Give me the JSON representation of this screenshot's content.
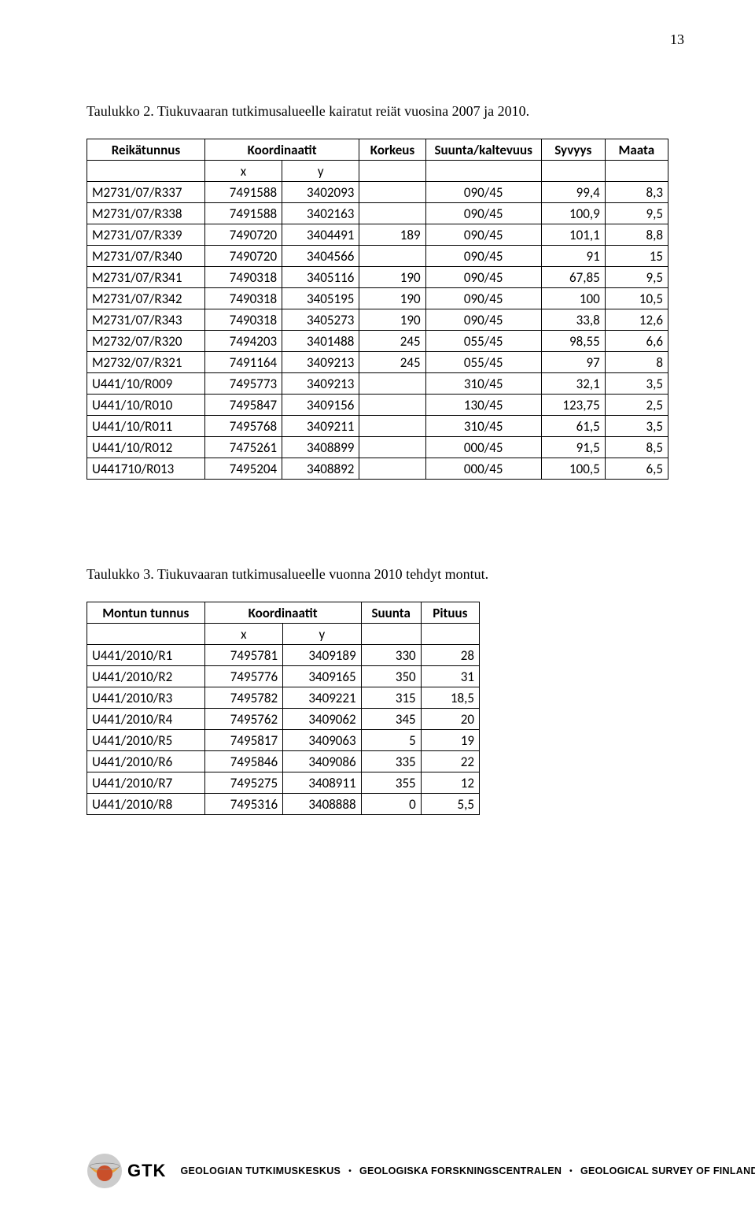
{
  "page_number": "13",
  "caption1": "Taulukko 2.   Tiukuvaaran tutkimusalueelle kairatut reiät vuosina 2007 ja 2010.",
  "caption2": "Taulukko 3.   Tiukuvaaran tutkimusalueelle vuonna 2010 tehdyt montut.",
  "table1": {
    "headers": [
      "Reikätunnus",
      "Koordinaatit",
      "Korkeus",
      "Suunta/kaltevuus",
      "Syvyys",
      "Maata"
    ],
    "subheaders": [
      "x",
      "y"
    ],
    "rows": [
      [
        "M2731/07/R337",
        "7491588",
        "3402093",
        "",
        "090/45",
        "99,4",
        "8,3"
      ],
      [
        "M2731/07/R338",
        "7491588",
        "3402163",
        "",
        "090/45",
        "100,9",
        "9,5"
      ],
      [
        "M2731/07/R339",
        "7490720",
        "3404491",
        "189",
        "090/45",
        "101,1",
        "8,8"
      ],
      [
        "M2731/07/R340",
        "7490720",
        "3404566",
        "",
        "090/45",
        "91",
        "15"
      ],
      [
        "M2731/07/R341",
        "7490318",
        "3405116",
        "190",
        "090/45",
        "67,85",
        "9,5"
      ],
      [
        "M2731/07/R342",
        "7490318",
        "3405195",
        "190",
        "090/45",
        "100",
        "10,5"
      ],
      [
        "M2731/07/R343",
        "7490318",
        "3405273",
        "190",
        "090/45",
        "33,8",
        "12,6"
      ],
      [
        "M2732/07/R320",
        "7494203",
        "3401488",
        "245",
        "055/45",
        "98,55",
        "6,6"
      ],
      [
        "M2732/07/R321",
        "7491164",
        "3409213",
        "245",
        "055/45",
        "97",
        "8"
      ],
      [
        "U441/10/R009",
        "7495773",
        "3409213",
        "",
        "310/45",
        "32,1",
        "3,5"
      ],
      [
        "U441/10/R010",
        "7495847",
        "3409156",
        "",
        "130/45",
        "123,75",
        "2,5"
      ],
      [
        "U441/10/R011",
        "7495768",
        "3409211",
        "",
        "310/45",
        "61,5",
        "3,5"
      ],
      [
        "U441/10/R012",
        "7475261",
        "3408899",
        "",
        "000/45",
        "91,5",
        "8,5"
      ],
      [
        "U441710/R013",
        "7495204",
        "3408892",
        "",
        "000/45",
        "100,5",
        "6,5"
      ]
    ],
    "col_align": [
      "left",
      "right",
      "right",
      "right",
      "center",
      "right",
      "right"
    ],
    "col_widths": [
      "150px",
      "100px",
      "100px",
      "80px",
      "140px",
      "80px",
      "80px"
    ]
  },
  "table2": {
    "headers": [
      "Montun tunnus",
      "Koordinaatit",
      "Suunta",
      "Pituus"
    ],
    "subheaders": [
      "x",
      "y"
    ],
    "rows": [
      [
        "U441/2010/R1",
        "7495781",
        "3409189",
        "330",
        "28"
      ],
      [
        "U441/2010/R2",
        "7495776",
        "3409165",
        "350",
        "31"
      ],
      [
        "U441/2010/R3",
        "7495782",
        "3409221",
        "315",
        "18,5"
      ],
      [
        "U441/2010/R4",
        "7495762",
        "3409062",
        "345",
        "20"
      ],
      [
        "U441/2010/R5",
        "7495817",
        "3409063",
        "5",
        "19"
      ],
      [
        "U441/2010/R6",
        "7495846",
        "3409086",
        "335",
        "22"
      ],
      [
        "U441/2010/R7",
        "7495275",
        "3408911",
        "355",
        "12"
      ],
      [
        "U441/2010/R8",
        "7495316",
        "3408888",
        "0",
        "5,5"
      ]
    ],
    "col_align": [
      "left",
      "right",
      "right",
      "right",
      "right"
    ],
    "col_widths": [
      "150px",
      "100px",
      "100px",
      "70px",
      "70px"
    ]
  },
  "logo": {
    "text": "GTK",
    "globe_outer": "#cccccc",
    "globe_mid": "#e8a23a",
    "globe_inner": "#c94f2a"
  },
  "footer": {
    "fi": "GEOLOGIAN TUTKIMUSKESKUS",
    "sv": "GEOLOGISKA FORSKNINGSCENTRALEN",
    "en": "GEOLOGICAL SURVEY OF FINLAND"
  }
}
